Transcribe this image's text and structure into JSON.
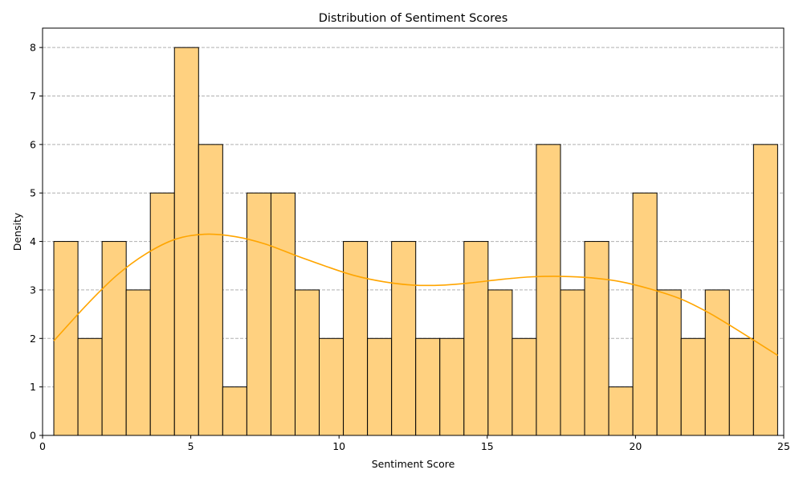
{
  "chart_data": {
    "type": "histogram",
    "title": "Distribution of Sentiment Scores",
    "xlabel": "Sentiment Score",
    "ylabel": "Density",
    "xlim": [
      0,
      25
    ],
    "ylim": [
      0,
      8.4
    ],
    "xticks": [
      0,
      5,
      10,
      15,
      20,
      25
    ],
    "yticks": [
      0,
      1,
      2,
      3,
      4,
      5,
      6,
      7,
      8
    ],
    "grid": "y-dashed",
    "bin_start": 0.38,
    "bin_width": 0.8138,
    "bin_counts": [
      4,
      2,
      4,
      3,
      5,
      8,
      6,
      1,
      5,
      5,
      3,
      2,
      4,
      2,
      4,
      2,
      2,
      4,
      3,
      2,
      6,
      3,
      4,
      1,
      5,
      3,
      2,
      3,
      2,
      6
    ],
    "kde": {
      "x": [
        0.38,
        1.5,
        2.5,
        3.5,
        4.5,
        5.5,
        6.5,
        7.5,
        8.5,
        9.5,
        10.5,
        11.5,
        12.5,
        13.5,
        14.5,
        15.5,
        16.5,
        17.5,
        18.5,
        19.5,
        20.5,
        21.5,
        22.5,
        23.5,
        24.8
      ],
      "y": [
        1.95,
        2.7,
        3.3,
        3.75,
        4.05,
        4.15,
        4.1,
        3.95,
        3.72,
        3.5,
        3.3,
        3.17,
        3.1,
        3.1,
        3.15,
        3.22,
        3.27,
        3.28,
        3.25,
        3.17,
        3.02,
        2.82,
        2.52,
        2.15,
        1.65
      ]
    },
    "colors": {
      "bar_fill": "#ffd180",
      "bar_edge": "#000000",
      "kde_line": "#ffa500",
      "grid": "#b0b0b0"
    }
  }
}
